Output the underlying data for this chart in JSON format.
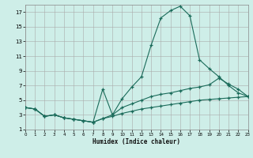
{
  "background_color": "#ceeee8",
  "line_color": "#1a6b5a",
  "xlabel": "Humidex (Indice chaleur)",
  "xlim": [
    0,
    23
  ],
  "ylim": [
    1,
    18
  ],
  "xticks": [
    0,
    1,
    2,
    3,
    4,
    5,
    6,
    7,
    8,
    9,
    10,
    11,
    12,
    13,
    14,
    15,
    16,
    17,
    18,
    19,
    20,
    21,
    22,
    23
  ],
  "yticks": [
    1,
    3,
    5,
    7,
    9,
    11,
    13,
    15,
    17
  ],
  "curve1_x": [
    0,
    1,
    2,
    3,
    4,
    5,
    6,
    7,
    8,
    9,
    10,
    11,
    12,
    13,
    14,
    15,
    16,
    17,
    18,
    19,
    20,
    21,
    22,
    23
  ],
  "curve1_y": [
    4.0,
    3.8,
    2.8,
    3.0,
    2.6,
    2.4,
    2.2,
    2.0,
    6.5,
    3.0,
    5.2,
    6.8,
    8.2,
    12.5,
    16.2,
    17.2,
    17.8,
    16.5,
    10.5,
    9.3,
    8.2,
    7.0,
    6.0,
    5.5
  ],
  "curve2_x": [
    0,
    1,
    2,
    3,
    4,
    5,
    6,
    7,
    8,
    9,
    10,
    11,
    12,
    13,
    14,
    15,
    16,
    17,
    18,
    19,
    20,
    21,
    22,
    23
  ],
  "curve2_y": [
    4.0,
    3.8,
    2.8,
    3.0,
    2.6,
    2.4,
    2.2,
    2.0,
    2.5,
    3.0,
    4.0,
    4.5,
    5.0,
    5.5,
    5.8,
    6.0,
    6.3,
    6.6,
    6.8,
    7.1,
    8.0,
    7.2,
    6.5,
    5.5
  ],
  "curve3_x": [
    0,
    1,
    2,
    3,
    4,
    5,
    6,
    7,
    8,
    9,
    10,
    11,
    12,
    13,
    14,
    15,
    16,
    17,
    18,
    19,
    20,
    21,
    22,
    23
  ],
  "curve3_y": [
    4.0,
    3.8,
    2.8,
    3.0,
    2.6,
    2.4,
    2.2,
    2.0,
    2.5,
    2.8,
    3.2,
    3.5,
    3.8,
    4.0,
    4.2,
    4.4,
    4.6,
    4.8,
    5.0,
    5.1,
    5.2,
    5.3,
    5.4,
    5.5
  ]
}
